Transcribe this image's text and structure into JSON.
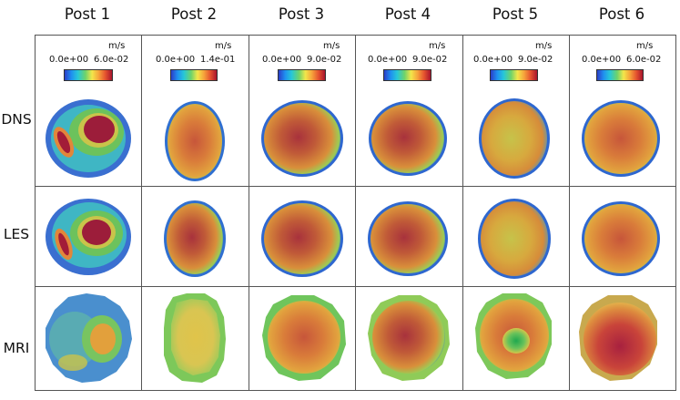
{
  "columns": [
    "Post 1",
    "Post  2",
    "Post 3",
    "Post  4",
    "Post  5",
    "Post  6"
  ],
  "rows": [
    "DNS",
    "LES",
    "MRI"
  ],
  "colorbars": [
    {
      "unit": "m/s",
      "min": "0.0e+00",
      "max": "6.0e-02"
    },
    {
      "unit": "m/s",
      "min": "0.0e+00",
      "max": "1.4e-01"
    },
    {
      "unit": "m/s",
      "min": "0.0e+00",
      "max": "9.0e-02"
    },
    {
      "unit": "m/s",
      "min": "0.0e+00",
      "max": "9.0e-02"
    },
    {
      "unit": "m/s",
      "min": "0.0e+00",
      "max": "9.0e-02"
    },
    {
      "unit": "m/s",
      "min": "0.0e+00",
      "max": "6.0e-02"
    }
  ],
  "colors": {
    "grid_line": "#555555",
    "cold": "#2b4fd0",
    "hot": "#8e1030"
  }
}
